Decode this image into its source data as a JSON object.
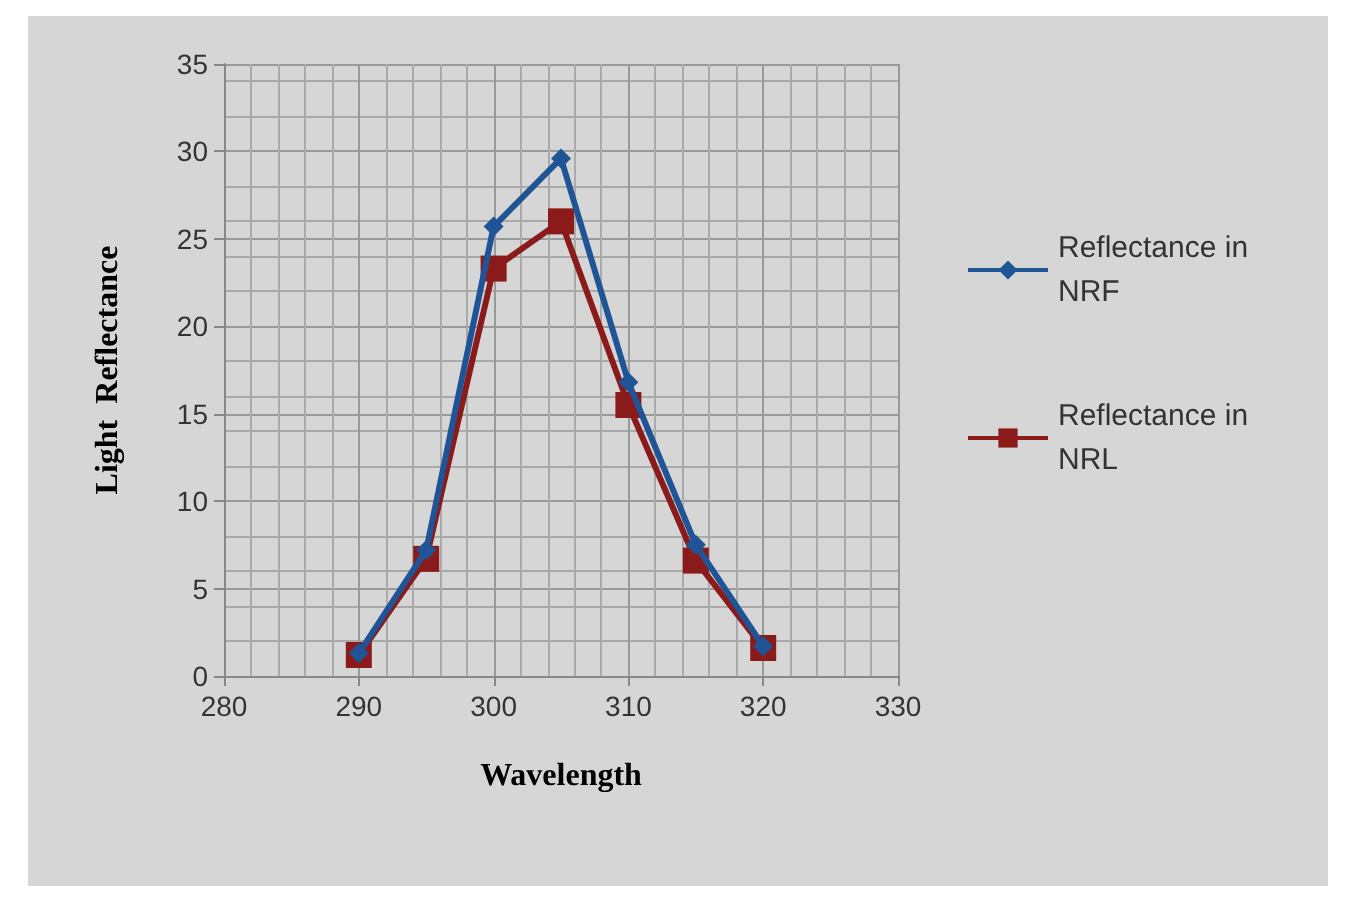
{
  "chart_data": {
    "type": "line",
    "xlabel": "Wavelength",
    "ylabel": "Light  Reflectance",
    "x": [
      290,
      295,
      300,
      305,
      310,
      315,
      320
    ],
    "series": [
      {
        "name": "Reflectance in NRF",
        "color": "#1f5596",
        "marker": "diamond",
        "values": [
          1.3,
          7.2,
          25.7,
          29.6,
          16.8,
          7.5,
          1.7
        ]
      },
      {
        "name": "Reflectance in NRL",
        "color": "#8b1a1a",
        "marker": "square",
        "values": [
          1.2,
          6.7,
          23.3,
          26.0,
          15.5,
          6.6,
          1.6
        ]
      }
    ],
    "xlim": [
      280,
      330
    ],
    "xticks": [
      280,
      290,
      300,
      310,
      320,
      330
    ],
    "ylim": [
      0,
      35
    ],
    "yticks": [
      0,
      5,
      10,
      15,
      20,
      25,
      30,
      35
    ],
    "grid": true,
    "legend": "right"
  }
}
